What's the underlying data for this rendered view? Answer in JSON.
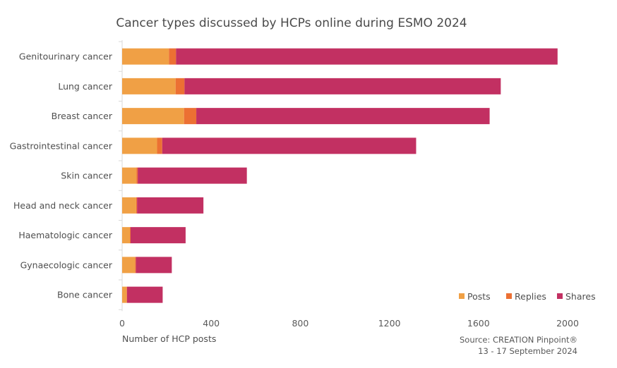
{
  "chart_data": {
    "type": "bar",
    "orientation": "horizontal",
    "stacked": true,
    "title": "Cancer types discussed by HCPs online during ESMO 2024",
    "xlabel": "Number of HCP posts",
    "ylabel": "",
    "xlim": [
      0,
      2000
    ],
    "xticks": [
      0,
      400,
      800,
      1200,
      1600,
      2000
    ],
    "xtick_labels": [
      "0",
      "400",
      "800",
      "1200",
      "1600",
      "2000"
    ],
    "grid": false,
    "legend_position": "bottom-right",
    "categories": [
      "Genitourinary cancer",
      "Lung cancer",
      "Breast cancer",
      "Gastrointestinal cancer",
      "Skin cancer",
      "Head and neck cancer",
      "Haematologic cancer",
      "Gynaecologic cancer",
      "Bone cancer"
    ],
    "series": [
      {
        "name": "Posts",
        "color": "#F0A045",
        "values": [
          210,
          240,
          278,
          157,
          64,
          63,
          35,
          58,
          20
        ]
      },
      {
        "name": "Replies",
        "color": "#EC7033",
        "values": [
          32,
          40,
          55,
          23,
          6,
          4,
          3,
          4,
          2
        ]
      },
      {
        "name": "Shares",
        "color": "#C23062",
        "values": [
          1713,
          1420,
          1317,
          1140,
          490,
          298,
          247,
          161,
          160
        ]
      }
    ],
    "source_lines": [
      "Source: CREATION Pinpoint®",
      "13 - 17 September 2024"
    ]
  }
}
